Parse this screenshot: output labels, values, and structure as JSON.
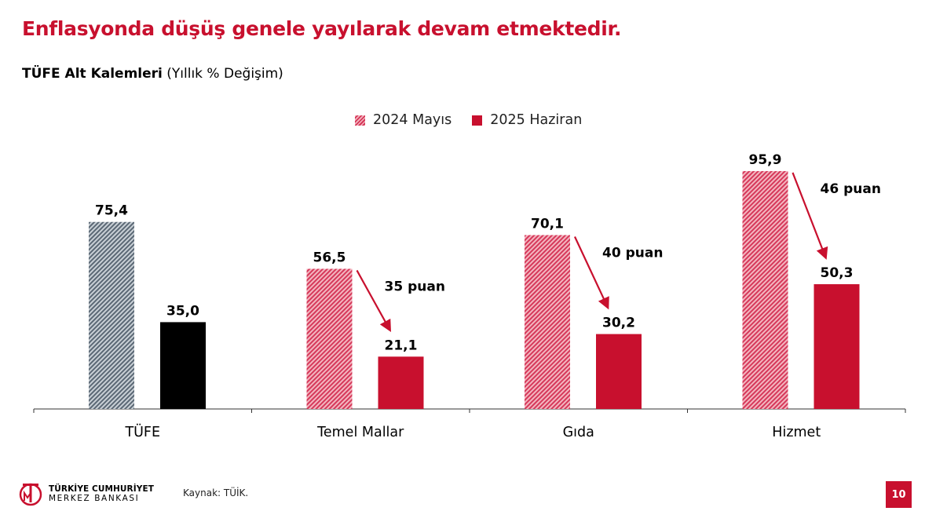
{
  "header": {
    "title": "Enflasyonda düşüş genele yayılarak devam etmektedir.",
    "subtitle_bold": "TÜFE Alt Kalemleri",
    "subtitle_normal": " (Yıllık % Değişim)"
  },
  "legend": {
    "items": [
      {
        "label": "2024 Mayıs"
      },
      {
        "label": "2025 Haziran"
      }
    ]
  },
  "colors": {
    "accent": "#c8102e",
    "tufe_2024": "#5b6875",
    "tufe_2025": "#000000",
    "hatch_light": "#f3b6c0",
    "hatch_dark": "#d6385a"
  },
  "chart_data": {
    "type": "bar",
    "categories": [
      "TÜFE",
      "Temel Mallar",
      "Gıda",
      "Hizmet"
    ],
    "series": [
      {
        "name": "2024 Mayıs",
        "values": [
          75.4,
          56.5,
          70.1,
          95.9
        ],
        "labels": [
          "75,4",
          "56,5",
          "70,1",
          "95,9"
        ]
      },
      {
        "name": "2025 Haziran",
        "values": [
          35.0,
          21.1,
          30.2,
          50.3
        ],
        "labels": [
          "35,0",
          "21,1",
          "30,2",
          "50,3"
        ]
      }
    ],
    "annotations": [
      {
        "category": "Temel Mallar",
        "text": "35 puan"
      },
      {
        "category": "Gıda",
        "text": "40 puan"
      },
      {
        "category": "Hizmet",
        "text": "46 puan"
      }
    ],
    "ylim": [
      0,
      100
    ],
    "grid": false,
    "legend_position": "top-center"
  },
  "footer": {
    "logo_line1": "TÜRKİYE CUMHURİYET",
    "logo_line2": "MERKEZ BANKASI",
    "source": "Kaynak: TÜİK.",
    "page_number": "10"
  }
}
